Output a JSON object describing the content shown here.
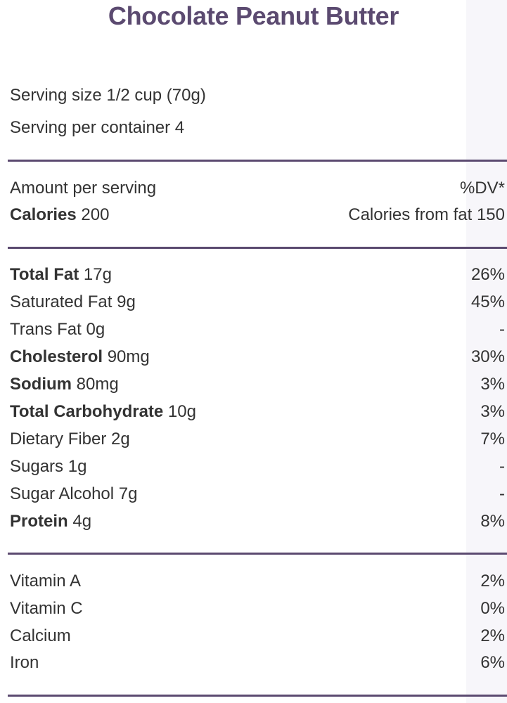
{
  "title": "Chocolate Peanut Butter",
  "serving": {
    "size": "Serving size 1/2 cup (70g)",
    "per_container": "Serving per container 4"
  },
  "header": {
    "amount_label": "Amount per serving",
    "dv_label": "%DV*",
    "calories_label": "Calories",
    "calories_value": " 200",
    "calories_from_fat": "Calories from fat 150"
  },
  "nutrients": [
    {
      "name": "Total Fat",
      "amount": " 17g",
      "dv": "26%",
      "bold": true
    },
    {
      "name": "Saturated Fat",
      "amount": " 9g",
      "dv": "45%",
      "bold": false
    },
    {
      "name": "Trans Fat",
      "amount": " 0g",
      "dv": "-",
      "bold": false
    },
    {
      "name": "Cholesterol",
      "amount": " 90mg",
      "dv": "30%",
      "bold": true
    },
    {
      "name": "Sodium",
      "amount": " 80mg",
      "dv": "3%",
      "bold": true
    },
    {
      "name": "Total Carbohydrate",
      "amount": " 10g",
      "dv": "3%",
      "bold": true
    },
    {
      "name": "Dietary Fiber",
      "amount": " 2g",
      "dv": "7%",
      "bold": false
    },
    {
      "name": "Sugars",
      "amount": " 1g",
      "dv": "-",
      "bold": false
    },
    {
      "name": "Sugar Alcohol",
      "amount": " 7g",
      "dv": "-",
      "bold": false
    },
    {
      "name": "Protein",
      "amount": " 4g",
      "dv": "8%",
      "bold": true
    }
  ],
  "vitamins": [
    {
      "name": "Vitamin A",
      "dv": "2%"
    },
    {
      "name": "Vitamin C",
      "dv": "0%"
    },
    {
      "name": "Calcium",
      "dv": "2%"
    },
    {
      "name": "Iron",
      "dv": "6%"
    }
  ],
  "colors": {
    "accent": "#5b4a70",
    "text": "#333333",
    "background": "#ffffff"
  }
}
